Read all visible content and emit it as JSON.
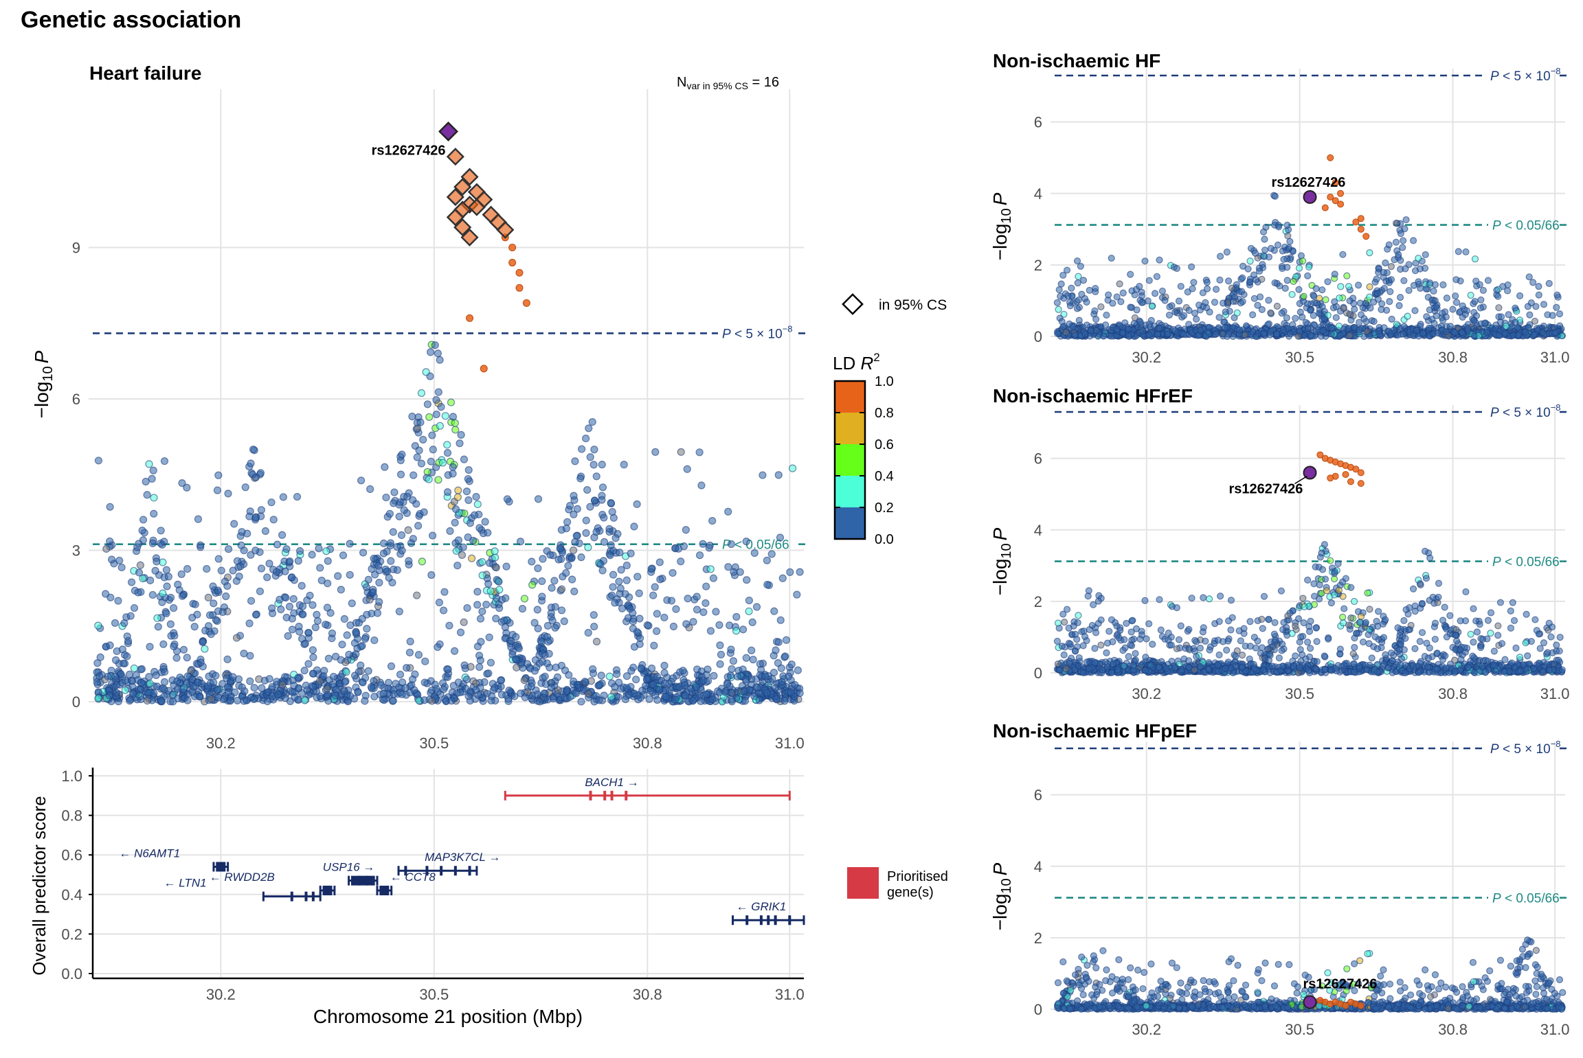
{
  "page_title": "Genetic association",
  "colors": {
    "ld_0_0_2": "#2f64a8",
    "ld_0_2_0_4": "#4dffd9",
    "ld_0_4_0_6": "#66ff1a",
    "ld_0_6_0_8": "#e0b020",
    "ld_0_8_1_0": "#e8631a",
    "lead": "#7a2fa0",
    "gene_prioritised": "#d63a44",
    "gene_other": "#162a64",
    "gws_line": "#1d3c7a",
    "suggestive_line": "#1f8a84"
  },
  "legend": {
    "cs_label": "in 95% CS",
    "ld_title": "LD R²",
    "ld_title_main": "LD ",
    "ld_title_var": "R",
    "ld_title_sup": "2",
    "ld_ticks": [
      "0.0",
      "0.2",
      "0.4",
      "0.6",
      "0.8",
      "1.0"
    ],
    "gene_legend_line1": "Prioritised",
    "gene_legend_line2": "gene(s)"
  },
  "thresholds": {
    "gws_value": 7.3,
    "gws_label_p": "P",
    "gws_label_rest": " < 5 × 10",
    "gws_label_exp": "−8",
    "sugg_value": 3.12,
    "sugg_label_p": "P",
    "sugg_label_rest": " < 0.05/66"
  },
  "chart_data": [
    {
      "id": "heart-failure",
      "type": "scatter",
      "title": "Heart failure",
      "annotation_main": "N",
      "annotation_sub": "var in 95% CS",
      "annotation_value": " = 16",
      "xlim": [
        30.02,
        31.02
      ],
      "ylim": [
        0,
        12
      ],
      "xticks": [
        "30.2",
        "30.5",
        "30.8",
        "31.0"
      ],
      "yticks": [
        "0",
        "3",
        "6",
        "9"
      ],
      "ylabel_main": "−log",
      "ylabel_sub": "10",
      "ylabel_var": "P",
      "lead_snp": {
        "name": "rs12627426",
        "x": 30.52,
        "y": 11.3
      },
      "credible_set": [
        {
          "x": 30.52,
          "y": 11.3
        },
        {
          "x": 30.53,
          "y": 10.8
        },
        {
          "x": 30.55,
          "y": 10.4
        },
        {
          "x": 30.54,
          "y": 10.2
        },
        {
          "x": 30.56,
          "y": 10.1
        },
        {
          "x": 30.53,
          "y": 10.0
        },
        {
          "x": 30.57,
          "y": 9.95
        },
        {
          "x": 30.55,
          "y": 9.85
        },
        {
          "x": 30.56,
          "y": 9.8
        },
        {
          "x": 30.54,
          "y": 9.75
        },
        {
          "x": 30.58,
          "y": 9.65
        },
        {
          "x": 30.53,
          "y": 9.6
        },
        {
          "x": 30.59,
          "y": 9.5
        },
        {
          "x": 30.54,
          "y": 9.4
        },
        {
          "x": 30.6,
          "y": 9.35
        },
        {
          "x": 30.55,
          "y": 9.2
        }
      ],
      "high_ld_points": [
        {
          "x": 30.6,
          "y": 9.2
        },
        {
          "x": 30.61,
          "y": 9.0
        },
        {
          "x": 30.61,
          "y": 8.7
        },
        {
          "x": 30.62,
          "y": 8.5
        },
        {
          "x": 30.62,
          "y": 8.2
        },
        {
          "x": 30.63,
          "y": 7.9
        },
        {
          "x": 30.55,
          "y": 7.6
        },
        {
          "x": 30.57,
          "y": 6.6
        }
      ]
    },
    {
      "id": "non-ischaemic-hf",
      "type": "scatter",
      "title": "Non-ischaemic HF",
      "xlim": [
        30.02,
        31.02
      ],
      "ylim": [
        0,
        7.3
      ],
      "xticks": [
        "30.2",
        "30.5",
        "30.8",
        "31.0"
      ],
      "yticks": [
        "0",
        "2",
        "4",
        "6"
      ],
      "ylabel_main": "−log",
      "ylabel_sub": "10",
      "ylabel_var": "P",
      "lead_snp": {
        "name": "rs12627426",
        "x": 30.52,
        "y": 3.9
      },
      "high_ld_points": [
        {
          "x": 30.56,
          "y": 5.0
        },
        {
          "x": 30.57,
          "y": 4.3
        },
        {
          "x": 30.58,
          "y": 4.0
        },
        {
          "x": 30.56,
          "y": 3.9
        },
        {
          "x": 30.57,
          "y": 3.8
        },
        {
          "x": 30.58,
          "y": 3.7
        },
        {
          "x": 30.55,
          "y": 3.6
        },
        {
          "x": 30.61,
          "y": 3.2
        },
        {
          "x": 30.62,
          "y": 3.0
        },
        {
          "x": 30.63,
          "y": 2.8
        },
        {
          "x": 30.62,
          "y": 3.3
        }
      ]
    },
    {
      "id": "non-ischaemic-hfref",
      "type": "scatter",
      "title": "Non-ischaemic HFrEF",
      "xlim": [
        30.02,
        31.02
      ],
      "ylim": [
        0,
        7.3
      ],
      "xticks": [
        "30.2",
        "30.5",
        "30.8",
        "31.0"
      ],
      "yticks": [
        "0",
        "2",
        "4",
        "6"
      ],
      "ylabel_main": "−log",
      "ylabel_sub": "10",
      "ylabel_var": "P",
      "lead_snp": {
        "name": "rs12627426",
        "x": 30.52,
        "y": 5.6
      },
      "high_ld_points": [
        {
          "x": 30.54,
          "y": 6.1
        },
        {
          "x": 30.55,
          "y": 6.0
        },
        {
          "x": 30.56,
          "y": 5.95
        },
        {
          "x": 30.57,
          "y": 5.9
        },
        {
          "x": 30.58,
          "y": 5.85
        },
        {
          "x": 30.59,
          "y": 5.8
        },
        {
          "x": 30.6,
          "y": 5.75
        },
        {
          "x": 30.61,
          "y": 5.7
        },
        {
          "x": 30.62,
          "y": 5.6
        },
        {
          "x": 30.57,
          "y": 5.5
        },
        {
          "x": 30.59,
          "y": 5.55
        },
        {
          "x": 30.56,
          "y": 5.45
        },
        {
          "x": 30.6,
          "y": 5.35
        },
        {
          "x": 30.62,
          "y": 5.3
        }
      ]
    },
    {
      "id": "non-ischaemic-hfpef",
      "type": "scatter",
      "title": "Non-ischaemic HFpEF",
      "xlim": [
        30.02,
        31.02
      ],
      "ylim": [
        0,
        7.3
      ],
      "xticks": [
        "30.2",
        "30.5",
        "30.8",
        "31.0"
      ],
      "yticks": [
        "0",
        "2",
        "4",
        "6"
      ],
      "ylabel_main": "−log",
      "ylabel_sub": "10",
      "ylabel_var": "P",
      "lead_snp": {
        "name": "rs12627426",
        "x": 30.52,
        "y": 0.2
      },
      "high_ld_points": [
        {
          "x": 30.54,
          "y": 0.25
        },
        {
          "x": 30.55,
          "y": 0.2
        },
        {
          "x": 30.56,
          "y": 0.15
        },
        {
          "x": 30.57,
          "y": 0.2
        },
        {
          "x": 30.58,
          "y": 0.15
        },
        {
          "x": 30.59,
          "y": 0.1
        },
        {
          "x": 30.6,
          "y": 0.2
        },
        {
          "x": 30.61,
          "y": 0.15
        },
        {
          "x": 30.62,
          "y": 0.1
        }
      ]
    },
    {
      "id": "gene-track",
      "type": "gene-track",
      "xlabel": "Chromosome 21 position (Mbp)",
      "ylabel": "Overall predictor score",
      "xlim": [
        30.02,
        31.02
      ],
      "ylim": [
        0,
        1.0
      ],
      "xticks": [
        "30.2",
        "30.5",
        "30.8",
        "31.0"
      ],
      "yticks": [
        "0.0",
        "0.2",
        "0.4",
        "0.6",
        "0.8",
        "1.0"
      ],
      "genes": [
        {
          "name": "BACH1",
          "direction": "→",
          "label_side": "right",
          "start": 30.6,
          "end": 31.0,
          "score": 0.9,
          "prioritised": true,
          "exons": [
            30.72,
            30.74,
            30.75,
            30.77
          ],
          "label_x": 30.75
        },
        {
          "name": "N6AMT1",
          "direction": "←",
          "label_side": "left",
          "start": 30.19,
          "end": 30.21,
          "score": 0.54,
          "prioritised": false,
          "exons": [
            30.2
          ],
          "label_x": 30.1
        },
        {
          "name": "USP16",
          "direction": "→",
          "label_side": "right",
          "start": 30.38,
          "end": 30.42,
          "score": 0.47,
          "prioritised": false,
          "exons": [
            30.39,
            30.4,
            30.41
          ],
          "label_x": 30.38
        },
        {
          "name": "MAP3K7CL",
          "direction": "→",
          "label_side": "right",
          "start": 30.45,
          "end": 30.56,
          "score": 0.52,
          "prioritised": false,
          "exons": [
            30.46,
            30.49,
            30.51,
            30.53,
            30.55
          ],
          "label_x": 30.54
        },
        {
          "name": "RWDD2B",
          "direction": "←",
          "label_side": "left",
          "start": 30.34,
          "end": 30.36,
          "score": 0.42,
          "prioritised": false,
          "exons": [
            30.35
          ],
          "label_x": 30.23
        },
        {
          "name": "CCT8",
          "direction": "←",
          "label_side": "left",
          "start": 30.42,
          "end": 30.44,
          "score": 0.42,
          "prioritised": false,
          "exons": [
            30.43
          ],
          "label_x": 30.47
        },
        {
          "name": "LTN1",
          "direction": "←",
          "label_side": "left",
          "start": 30.26,
          "end": 30.34,
          "score": 0.39,
          "prioritised": false,
          "exons": [
            30.3,
            30.32,
            30.33
          ],
          "label_x": 30.15
        },
        {
          "name": "GRIK1",
          "direction": "←",
          "label_side": "left",
          "start": 30.92,
          "end": 31.02,
          "score": 0.27,
          "prioritised": false,
          "exons": [
            30.94,
            30.96,
            30.97,
            30.98,
            31.0
          ],
          "label_x": 30.96
        }
      ]
    }
  ]
}
